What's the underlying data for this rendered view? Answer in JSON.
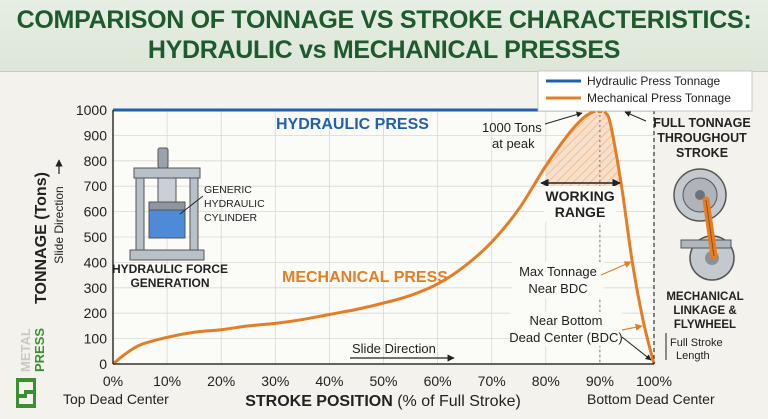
{
  "title": {
    "line1": "COMPARISON OF TONNAGE VS STROKE CHARACTERISTICS:",
    "line2": "HYDRAULIC vs MECHANICAL PRESSES"
  },
  "chart_data": {
    "type": "line",
    "xlabel_bold": "STROKE POSITION",
    "xlabel_rest": " (% of Full Stroke)",
    "ylabel": "TONNAGE (Tons)",
    "ylabel_sub": "Slide Direction",
    "x_ticks": [
      "0%",
      "10%",
      "20%",
      "30%",
      "40%",
      "50%",
      "60%",
      "70%",
      "80%",
      "90%",
      "100%"
    ],
    "y_ticks": [
      "0",
      "100",
      "200",
      "300",
      "400",
      "500",
      "600",
      "700",
      "800",
      "900",
      "1000"
    ],
    "xlim": [
      0,
      100
    ],
    "ylim": [
      0,
      1000
    ],
    "grid": true,
    "legend_position": "top-right",
    "series": [
      {
        "name": "Hydraulic Press Tonnage",
        "color": "#1f5fb4",
        "x": [
          0,
          100
        ],
        "y": [
          1000,
          1000
        ]
      },
      {
        "name": "Mechanical Press Tonnage",
        "color": "#e57d25",
        "x": [
          0,
          2,
          5,
          10,
          15,
          20,
          25,
          30,
          35,
          40,
          45,
          50,
          55,
          60,
          65,
          70,
          75,
          80,
          84,
          87,
          89,
          90,
          91,
          92,
          94,
          96,
          98,
          100
        ],
        "y": [
          0,
          35,
          75,
          105,
          125,
          135,
          150,
          160,
          175,
          195,
          215,
          240,
          270,
          315,
          385,
          480,
          610,
          780,
          900,
          970,
          995,
          1000,
          990,
          940,
          700,
          400,
          170,
          0
        ]
      }
    ],
    "annotations": {
      "hydraulic_label": "HYDRAULIC PRESS",
      "mechanical_label": "MECHANICAL PRESS",
      "peak_label_1": "1000 Tons",
      "peak_label_2": "at peak",
      "working_range_1": "WORKING",
      "working_range_2": "RANGE",
      "full_tonnage_1": "FULL TONNAGE",
      "full_tonnage_2": "THROUGHOUT",
      "full_tonnage_3": "STROKE",
      "max_tonnage_1": "Max Tonnage",
      "max_tonnage_2": "Near BDC",
      "near_bdc_1": "Near Bottom",
      "near_bdc_2": "Dead Center (BDC)",
      "full_stroke_1": "Full Stroke",
      "full_stroke_2": "Length",
      "slide_direction": "Slide Direction",
      "top_dead_center": "Top Dead Center",
      "bottom_dead_center": "Bottom Dead Center",
      "cylinder_1": "GENERIC",
      "cylinder_2": "HYDRAULIC",
      "cylinder_3": "CYLINDER",
      "hyd_force_1": "HYDRAULIC FORCE",
      "hyd_force_2": "GENERATION",
      "mech_link_1": "MECHANICAL",
      "mech_link_2": "LINKAGE &",
      "mech_link_3": "FLYWHEEL"
    },
    "working_range": [
      80,
      95
    ]
  },
  "logo": {
    "line1": "METAL",
    "line2": "PRESS"
  }
}
